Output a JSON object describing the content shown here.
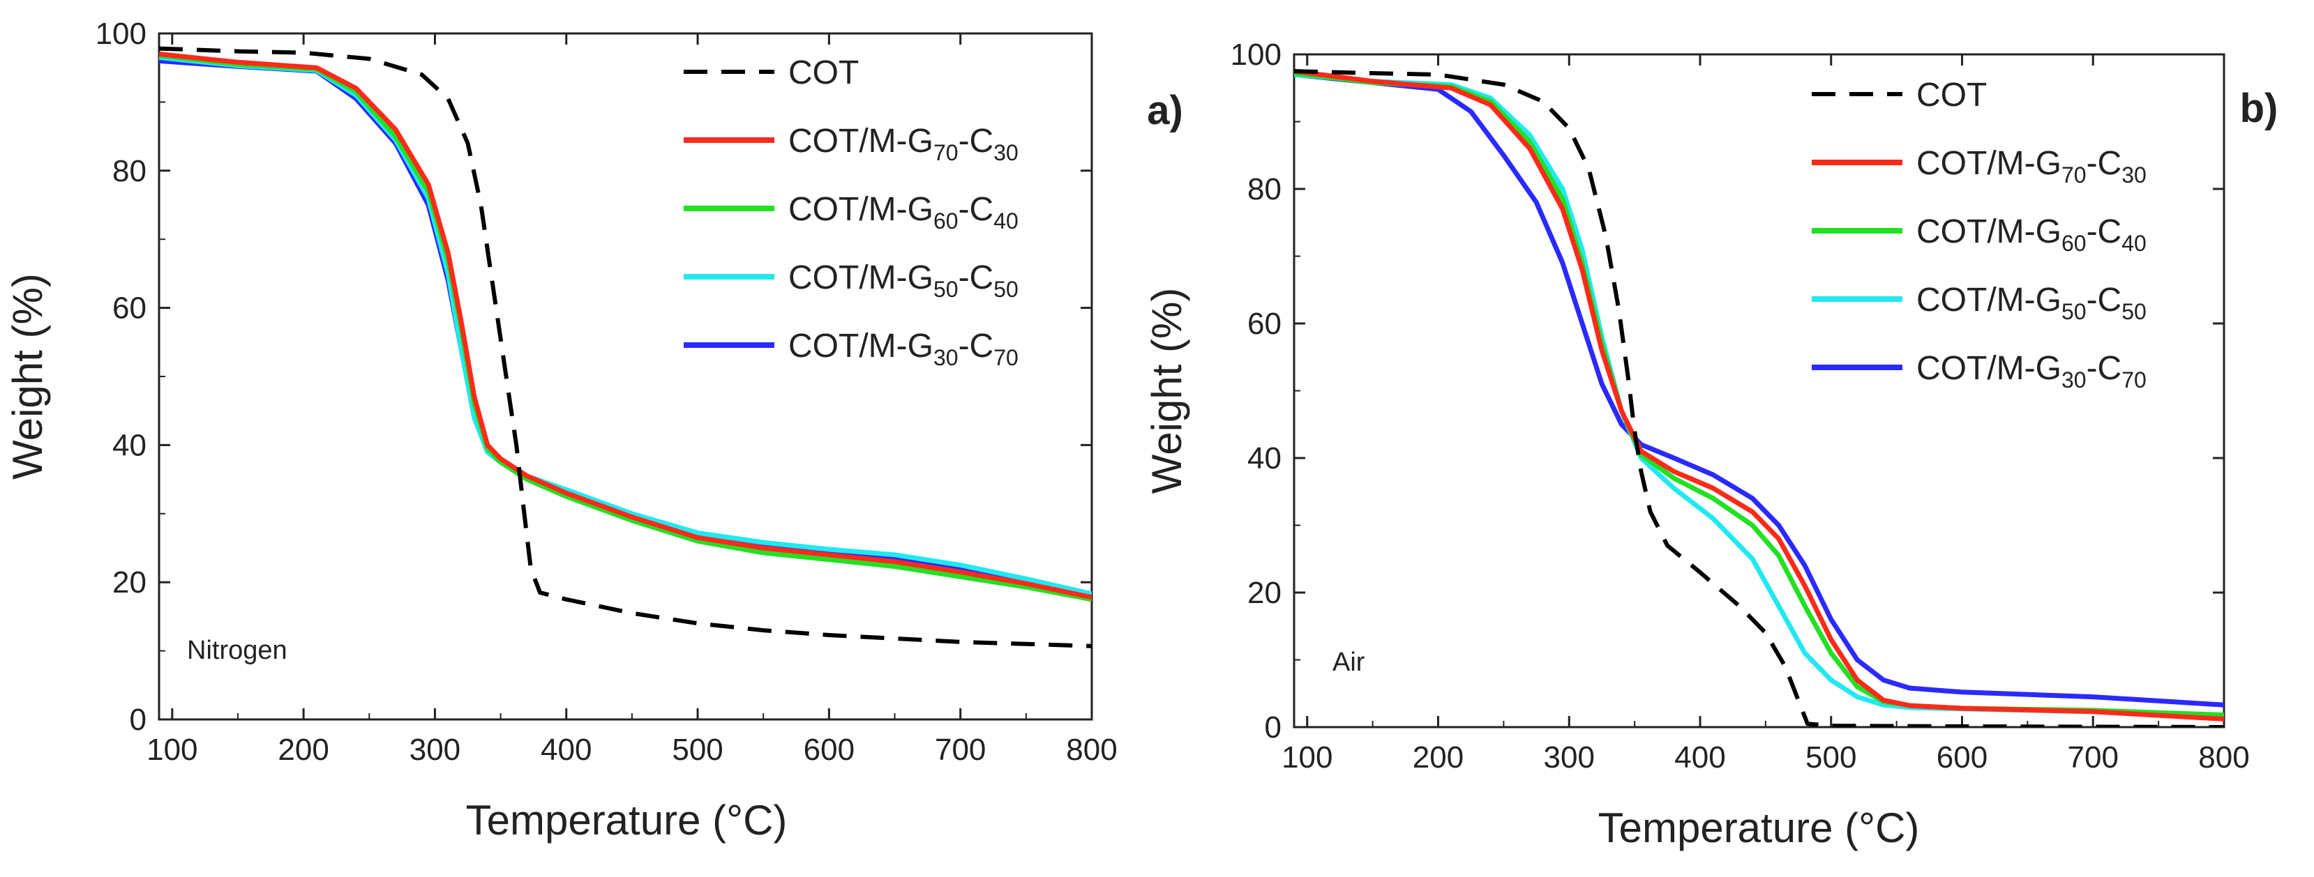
{
  "chart_data": [
    {
      "type": "line",
      "panel_label": "a)",
      "annotation": "Nitrogen",
      "xlabel": "Temperature (°C)",
      "ylabel": "Weight (%)",
      "xlim": [
        90,
        800
      ],
      "ylim": [
        0,
        100
      ],
      "x_ticks": [
        "100",
        "200",
        "300",
        "400",
        "500",
        "600",
        "700",
        "800"
      ],
      "y_ticks": [
        "0",
        "20",
        "40",
        "60",
        "80",
        "100"
      ],
      "legend_position": "top-right",
      "series": [
        {
          "name": "COT",
          "base": "COT",
          "sub1": "",
          "mid": "",
          "sub2": "",
          "color": "#000000",
          "dash": true,
          "points": [
            [
              90,
              97.8
            ],
            [
              150,
              97.4
            ],
            [
              200,
              97.2
            ],
            [
              250,
              96.3
            ],
            [
              290,
              94
            ],
            [
              310,
              90.5
            ],
            [
              325,
              84
            ],
            [
              335,
              75
            ],
            [
              345,
              62
            ],
            [
              355,
              49
            ],
            [
              362,
              40
            ],
            [
              368,
              30
            ],
            [
              373,
              22
            ],
            [
              380,
              18.5
            ],
            [
              400,
              17.5
            ],
            [
              450,
              15.5
            ],
            [
              500,
              14
            ],
            [
              550,
              13
            ],
            [
              600,
              12.3
            ],
            [
              650,
              11.8
            ],
            [
              700,
              11.3
            ],
            [
              750,
              11
            ],
            [
              800,
              10.7
            ]
          ]
        },
        {
          "name": "COT/M-G70-C30",
          "base": "COT/M-G",
          "sub1": "70",
          "mid": "-C",
          "sub2": "30",
          "color": "#ff2a1a",
          "dash": false,
          "points": [
            [
              90,
              97
            ],
            [
              150,
              95.8
            ],
            [
              210,
              95
            ],
            [
              240,
              92
            ],
            [
              270,
              86
            ],
            [
              295,
              78
            ],
            [
              310,
              68
            ],
            [
              320,
              58
            ],
            [
              330,
              47
            ],
            [
              340,
              40
            ],
            [
              350,
              38
            ],
            [
              370,
              35.5
            ],
            [
              400,
              33
            ],
            [
              450,
              29.5
            ],
            [
              500,
              26.5
            ],
            [
              550,
              25
            ],
            [
              600,
              24
            ],
            [
              650,
              23
            ],
            [
              700,
              21.5
            ],
            [
              750,
              19.8
            ],
            [
              800,
              17.8
            ]
          ]
        },
        {
          "name": "COT/M-G60-C40",
          "base": "COT/M-G",
          "sub1": "60",
          "mid": "-C",
          "sub2": "40",
          "color": "#22e022",
          "dash": false,
          "points": [
            [
              90,
              96.8
            ],
            [
              150,
              95.5
            ],
            [
              210,
              94.8
            ],
            [
              240,
              91.5
            ],
            [
              270,
              85
            ],
            [
              295,
              77
            ],
            [
              310,
              67
            ],
            [
              320,
              57
            ],
            [
              330,
              46
            ],
            [
              340,
              39.5
            ],
            [
              350,
              37.5
            ],
            [
              370,
              35
            ],
            [
              400,
              32.5
            ],
            [
              450,
              29
            ],
            [
              500,
              26
            ],
            [
              550,
              24.3
            ],
            [
              600,
              23.3
            ],
            [
              650,
              22.3
            ],
            [
              700,
              20.8
            ],
            [
              750,
              19.3
            ],
            [
              800,
              17.5
            ]
          ]
        },
        {
          "name": "COT/M-G50-C50",
          "base": "COT/M-G",
          "sub1": "50",
          "mid": "-C",
          "sub2": "50",
          "color": "#22e8f0",
          "dash": false,
          "points": [
            [
              90,
              96.5
            ],
            [
              150,
              95.3
            ],
            [
              210,
              94.6
            ],
            [
              240,
              91
            ],
            [
              270,
              84.5
            ],
            [
              295,
              76
            ],
            [
              310,
              65
            ],
            [
              320,
              54
            ],
            [
              330,
              44
            ],
            [
              340,
              39
            ],
            [
              350,
              37.5
            ],
            [
              370,
              35.5
            ],
            [
              400,
              33.5
            ],
            [
              450,
              30
            ],
            [
              500,
              27.2
            ],
            [
              550,
              25.8
            ],
            [
              600,
              24.8
            ],
            [
              650,
              24
            ],
            [
              700,
              22.5
            ],
            [
              750,
              20.5
            ],
            [
              800,
              18.3
            ]
          ]
        },
        {
          "name": "COT/M-G30-C70",
          "base": "COT/M-G",
          "sub1": "30",
          "mid": "-C",
          "sub2": "70",
          "color": "#2a2aff",
          "dash": false,
          "points": [
            [
              90,
              96
            ],
            [
              150,
              95.2
            ],
            [
              210,
              94.5
            ],
            [
              240,
              90.5
            ],
            [
              270,
              84
            ],
            [
              295,
              75
            ],
            [
              310,
              64
            ],
            [
              320,
              54
            ],
            [
              330,
              44
            ],
            [
              340,
              39
            ],
            [
              350,
              37.5
            ],
            [
              370,
              35.3
            ],
            [
              400,
              33.2
            ],
            [
              450,
              29.5
            ],
            [
              500,
              26.8
            ],
            [
              550,
              25.3
            ],
            [
              600,
              24.3
            ],
            [
              650,
              23.5
            ],
            [
              700,
              22
            ],
            [
              750,
              20
            ],
            [
              800,
              17.9
            ]
          ]
        }
      ]
    },
    {
      "type": "line",
      "panel_label": "b)",
      "annotation": "Air",
      "xlabel": "Temperature (°C)",
      "ylabel": "Weight (%)",
      "xlim": [
        90,
        800
      ],
      "ylim": [
        0,
        100
      ],
      "x_ticks": [
        "100",
        "200",
        "300",
        "400",
        "500",
        "600",
        "700",
        "800"
      ],
      "y_ticks": [
        "0",
        "20",
        "40",
        "60",
        "80",
        "100"
      ],
      "legend_position": "top-right",
      "series": [
        {
          "name": "COT",
          "base": "COT",
          "sub1": "",
          "mid": "",
          "sub2": "",
          "color": "#000000",
          "dash": true,
          "points": [
            [
              90,
              97.5
            ],
            [
              150,
              97.2
            ],
            [
              200,
              97
            ],
            [
              250,
              95.5
            ],
            [
              280,
              93
            ],
            [
              300,
              89
            ],
            [
              315,
              83
            ],
            [
              328,
              73
            ],
            [
              338,
              62
            ],
            [
              345,
              52
            ],
            [
              350,
              44
            ],
            [
              355,
              38
            ],
            [
              362,
              32
            ],
            [
              375,
              27
            ],
            [
              400,
              23
            ],
            [
              430,
              18
            ],
            [
              450,
              14
            ],
            [
              465,
              9
            ],
            [
              475,
              4
            ],
            [
              482,
              0.5
            ],
            [
              500,
              0.2
            ],
            [
              600,
              0.1
            ],
            [
              800,
              0
            ]
          ]
        },
        {
          "name": "COT/M-G70-C30",
          "base": "COT/M-G",
          "sub1": "70",
          "mid": "-C",
          "sub2": "30",
          "color": "#ff2a1a",
          "dash": false,
          "points": [
            [
              90,
              97.5
            ],
            [
              150,
              96
            ],
            [
              210,
              95
            ],
            [
              240,
              92.5
            ],
            [
              270,
              86
            ],
            [
              295,
              77
            ],
            [
              310,
              68
            ],
            [
              325,
              56
            ],
            [
              340,
              47
            ],
            [
              355,
              41
            ],
            [
              380,
              38
            ],
            [
              410,
              35.5
            ],
            [
              440,
              32
            ],
            [
              460,
              28
            ],
            [
              480,
              21
            ],
            [
              500,
              13
            ],
            [
              520,
              7
            ],
            [
              540,
              4
            ],
            [
              560,
              3.2
            ],
            [
              600,
              2.8
            ],
            [
              700,
              2.3
            ],
            [
              800,
              1.2
            ]
          ]
        },
        {
          "name": "COT/M-G60-C40",
          "base": "COT/M-G",
          "sub1": "60",
          "mid": "-C",
          "sub2": "40",
          "color": "#22e022",
          "dash": false,
          "points": [
            [
              90,
              97.2
            ],
            [
              150,
              95.8
            ],
            [
              210,
              95.2
            ],
            [
              240,
              93
            ],
            [
              270,
              87
            ],
            [
              295,
              78.5
            ],
            [
              310,
              69
            ],
            [
              325,
              57
            ],
            [
              340,
              47
            ],
            [
              355,
              40.5
            ],
            [
              380,
              37
            ],
            [
              410,
              34
            ],
            [
              440,
              30
            ],
            [
              460,
              25.5
            ],
            [
              480,
              18
            ],
            [
              500,
              11
            ],
            [
              520,
              6
            ],
            [
              540,
              3.8
            ],
            [
              560,
              3.2
            ],
            [
              600,
              2.8
            ],
            [
              700,
              2.5
            ],
            [
              800,
              1.8
            ]
          ]
        },
        {
          "name": "COT/M-G50-C50",
          "base": "COT/M-G",
          "sub1": "50",
          "mid": "-C",
          "sub2": "50",
          "color": "#22e8f0",
          "dash": false,
          "points": [
            [
              90,
              97
            ],
            [
              150,
              96
            ],
            [
              210,
              95.5
            ],
            [
              240,
              93.5
            ],
            [
              270,
              88
            ],
            [
              295,
              80
            ],
            [
              310,
              71
            ],
            [
              325,
              58
            ],
            [
              340,
              47
            ],
            [
              355,
              40
            ],
            [
              380,
              35.5
            ],
            [
              410,
              31
            ],
            [
              440,
              25
            ],
            [
              460,
              18
            ],
            [
              480,
              11
            ],
            [
              500,
              7
            ],
            [
              520,
              4.5
            ],
            [
              540,
              3.3
            ],
            [
              560,
              2.9
            ],
            [
              600,
              2.7
            ],
            [
              700,
              2.3
            ],
            [
              800,
              1.5
            ]
          ]
        },
        {
          "name": "COT/M-G30-C70",
          "base": "COT/M-G",
          "sub1": "30",
          "mid": "-C",
          "sub2": "70",
          "color": "#2a2aff",
          "dash": false,
          "points": [
            [
              90,
              97
            ],
            [
              150,
              95.8
            ],
            [
              200,
              94.8
            ],
            [
              225,
              91.5
            ],
            [
              250,
              85
            ],
            [
              275,
              78
            ],
            [
              295,
              69
            ],
            [
              310,
              60
            ],
            [
              325,
              51
            ],
            [
              340,
              45
            ],
            [
              355,
              42
            ],
            [
              380,
              40
            ],
            [
              410,
              37.5
            ],
            [
              440,
              34
            ],
            [
              460,
              30
            ],
            [
              480,
              24
            ],
            [
              500,
              16
            ],
            [
              520,
              10
            ],
            [
              540,
              7
            ],
            [
              560,
              5.8
            ],
            [
              600,
              5.2
            ],
            [
              700,
              4.5
            ],
            [
              800,
              3.3
            ]
          ]
        }
      ]
    }
  ]
}
